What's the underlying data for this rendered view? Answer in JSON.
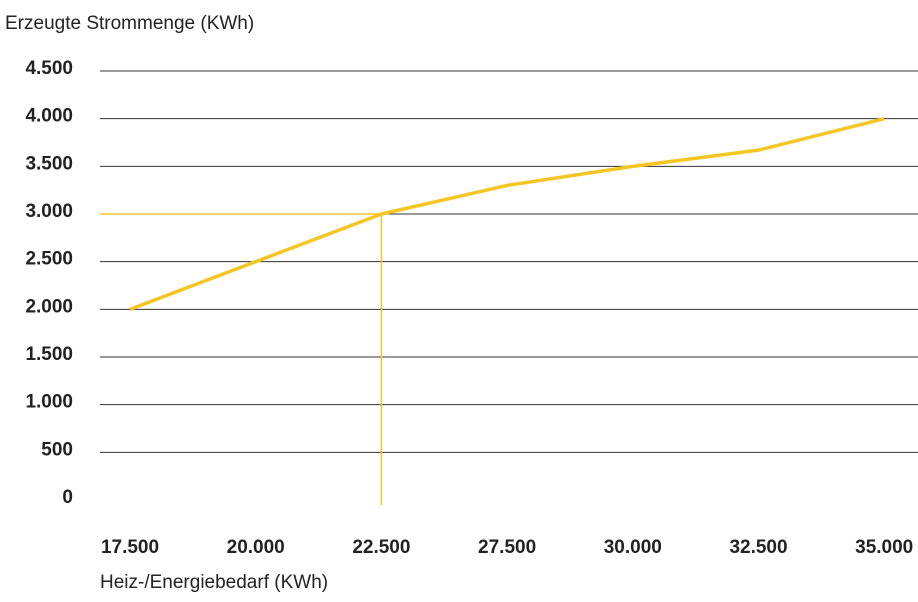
{
  "chart_data": {
    "type": "line",
    "ylabel": "Erzeugte Strommenge (KWh)",
    "xlabel": "Heiz-/Energiebedarf (KWh)",
    "categories": [
      "17.500",
      "20.000",
      "22.500",
      "27.500",
      "30.000",
      "32.500",
      "35.000"
    ],
    "values": [
      2000,
      2500,
      3000,
      3300,
      3500,
      3670,
      4000
    ],
    "color": "#f5c623",
    "highlight_index": 2,
    "ylim": [
      0,
      4500
    ],
    "yticks": [
      0,
      500,
      {
        "value": 1000,
        "label": "1.000"
      },
      {
        "value": 1500,
        "label": "1.500"
      },
      {
        "value": 2000,
        "label": "2.000"
      },
      {
        "value": 2500,
        "label": "2.500"
      },
      {
        "value": 3000,
        "label": "3.000"
      },
      {
        "value": 3500,
        "label": "3.500"
      },
      {
        "value": 4000,
        "label": "4.000"
      },
      {
        "value": 4500,
        "label": "4.500"
      }
    ],
    "grid": true
  }
}
